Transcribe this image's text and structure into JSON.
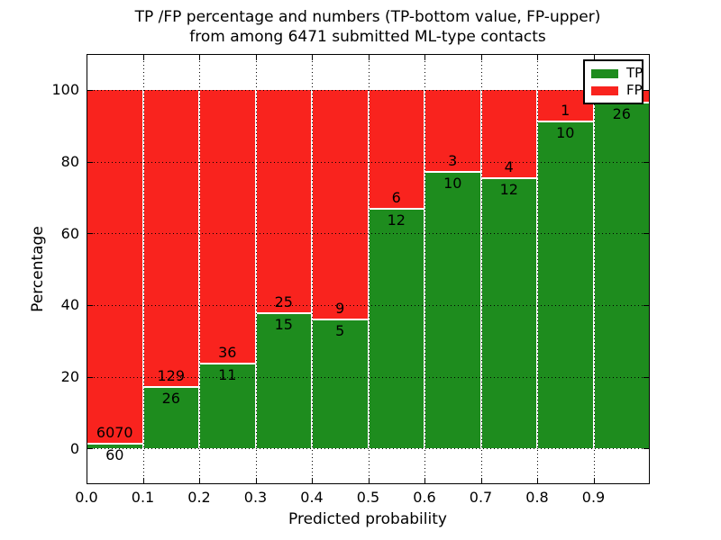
{
  "figure": {
    "background": "#ffffff"
  },
  "title": {
    "line1": "TP /FP percentage and numbers (TP-bottom value, FP-upper)",
    "line2": "from among 6471 submitted ML-type contacts"
  },
  "axes": {
    "xlabel": "Predicted probability",
    "ylabel": "Percentage"
  },
  "legend": {
    "items": [
      {
        "label": "TP",
        "color": "#1e8c1e"
      },
      {
        "label": "FP",
        "color": "#f9231e"
      }
    ]
  },
  "colors": {
    "tp_green": "#1e8c1e",
    "fp_red": "#f9231e",
    "grid": "#000000",
    "bar_edge": "#ffffff"
  },
  "chart_data": {
    "type": "bar",
    "stacked": true,
    "title": "TP /FP percentage and numbers (TP-bottom value, FP-upper) from among 6471 submitted ML-type contacts",
    "xlabel": "Predicted probability",
    "ylabel": "Percentage",
    "total_contacts": 6471,
    "bin_width": 0.1,
    "categories": [
      "0.0-0.1",
      "0.1-0.2",
      "0.2-0.3",
      "0.3-0.4",
      "0.4-0.5",
      "0.5-0.6",
      "0.6-0.7",
      "0.7-0.8",
      "0.8-0.9",
      "0.9-1.0"
    ],
    "series": [
      {
        "name": "TP",
        "color": "#1e8c1e",
        "counts": [
          60,
          26,
          11,
          15,
          5,
          12,
          10,
          12,
          10,
          26
        ]
      },
      {
        "name": "FP",
        "color": "#f9231e",
        "counts": [
          6070,
          129,
          36,
          25,
          9,
          6,
          3,
          4,
          1,
          1
        ]
      }
    ],
    "tp_percent": [
      0.98,
      16.77,
      23.4,
      37.5,
      35.71,
      66.67,
      76.92,
      75.0,
      90.91,
      96.3
    ],
    "fp_label_visible": [
      true,
      true,
      true,
      true,
      true,
      true,
      true,
      true,
      true,
      false
    ],
    "tp_label_visible": [
      true,
      true,
      true,
      true,
      true,
      true,
      true,
      true,
      true,
      true
    ],
    "ylim": [
      -10,
      110
    ],
    "xlim": [
      0,
      1
    ],
    "yticks": [
      0,
      20,
      40,
      60,
      80,
      100
    ],
    "xticks": [
      "0.0",
      "0.1",
      "0.2",
      "0.3",
      "0.4",
      "0.5",
      "0.6",
      "0.7",
      "0.8",
      "0.9"
    ],
    "grid": true,
    "grid_style": "dotted",
    "legend_position": "upper right"
  }
}
